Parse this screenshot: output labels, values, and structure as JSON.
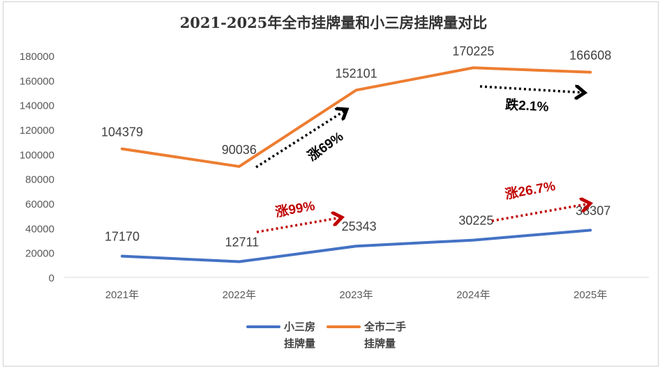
{
  "chart_data": {
    "type": "line",
    "title": "2021-2025年全市挂牌量和小三房挂牌量对比",
    "categories": [
      "2021年",
      "2022年",
      "2023年",
      "2024年",
      "2025年"
    ],
    "ylim": [
      0,
      180000
    ],
    "yticks": [
      "0",
      "20000",
      "40000",
      "60000",
      "80000",
      "100000",
      "120000",
      "140000",
      "160000",
      "180000"
    ],
    "grid": false,
    "legend_position": "bottom",
    "series": [
      {
        "name": "小三房挂牌量",
        "legend_lines": [
          "小三房",
          "挂牌量"
        ],
        "color": "#4472C4",
        "values": [
          17170,
          12711,
          25343,
          30225,
          38307
        ]
      },
      {
        "name": "全市二手挂牌量",
        "legend_lines": [
          "全市二手",
          "挂牌量"
        ],
        "color": "#ED7D31",
        "values": [
          104379,
          90036,
          152101,
          170225,
          166608
        ]
      }
    ],
    "annotations": [
      {
        "text": "涨69%",
        "color": "#000000"
      },
      {
        "text": "跌2.1%",
        "color": "#000000"
      },
      {
        "text": "涨99%",
        "color": "#C00000"
      },
      {
        "text": "涨26.7%",
        "color": "#C00000"
      }
    ]
  }
}
